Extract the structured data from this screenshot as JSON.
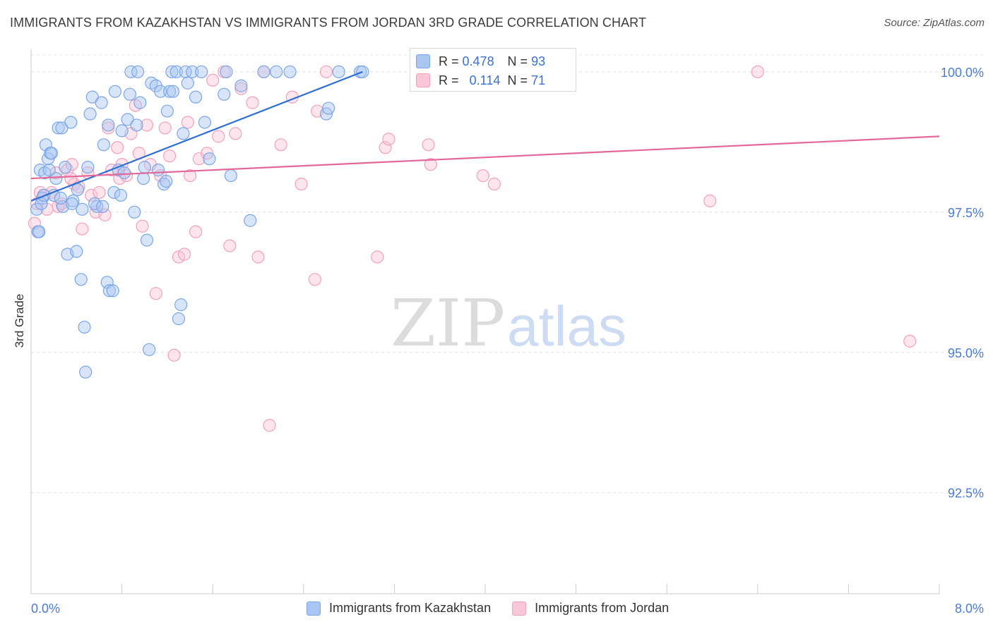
{
  "title": "IMMIGRANTS FROM KAZAKHSTAN VS IMMIGRANTS FROM JORDAN 3RD GRADE CORRELATION CHART",
  "source": "Source: ZipAtlas.com",
  "watermark": {
    "zip": "ZIP",
    "atlas": "atlas"
  },
  "stats": [
    {
      "r_label": "R =",
      "r": "0.478",
      "n_label": "N =",
      "n": "93"
    },
    {
      "r_label": "R =",
      "r": "0.114",
      "n_label": "N =",
      "n": "71"
    }
  ],
  "chart_data": {
    "type": "scatter",
    "title": "IMMIGRANTS FROM KAZAKHSTAN VS IMMIGRANTS FROM JORDAN 3RD GRADE CORRELATION CHART",
    "xlabel": "",
    "ylabel": "3rd Grade",
    "xlim": [
      0,
      8
    ],
    "ylim": [
      90.7,
      100.4
    ],
    "x_tick_labels": [
      "0.0%",
      "8.0%"
    ],
    "y_ticks": [
      92.5,
      95.0,
      97.5,
      100.0
    ],
    "y_tick_labels": [
      "92.5%",
      "95.0%",
      "97.5%",
      "100.0%"
    ],
    "grid": true,
    "series": [
      {
        "name": "Immigrants from Kazakhstan",
        "color": "#7aa6e6",
        "fill": "#a9c6f2",
        "line_color": "#2e6fd6",
        "trend": {
          "x": [
            0.0,
            2.92
          ],
          "y": [
            97.7,
            100.0
          ]
        },
        "points": [
          [
            0.05,
            97.55
          ],
          [
            0.06,
            97.15
          ],
          [
            0.07,
            97.15
          ],
          [
            0.08,
            98.25
          ],
          [
            0.1,
            97.75
          ],
          [
            0.12,
            98.2
          ],
          [
            0.13,
            98.7
          ],
          [
            0.15,
            98.45
          ],
          [
            0.17,
            98.55
          ],
          [
            0.2,
            97.8
          ],
          [
            0.22,
            98.1
          ],
          [
            0.24,
            99.0
          ],
          [
            0.27,
            99.0
          ],
          [
            0.28,
            97.6
          ],
          [
            0.3,
            98.3
          ],
          [
            0.32,
            96.75
          ],
          [
            0.35,
            99.1
          ],
          [
            0.37,
            97.7
          ],
          [
            0.4,
            96.8
          ],
          [
            0.41,
            97.9
          ],
          [
            0.44,
            96.3
          ],
          [
            0.47,
            95.45
          ],
          [
            0.48,
            94.65
          ],
          [
            0.5,
            98.3
          ],
          [
            0.52,
            99.25
          ],
          [
            0.54,
            99.55
          ],
          [
            0.58,
            97.6
          ],
          [
            0.62,
            99.45
          ],
          [
            0.64,
            98.7
          ],
          [
            0.67,
            96.25
          ],
          [
            0.68,
            99.05
          ],
          [
            0.69,
            96.1
          ],
          [
            0.72,
            96.1
          ],
          [
            0.73,
            97.85
          ],
          [
            0.74,
            99.65
          ],
          [
            0.77,
            98.25
          ],
          [
            0.79,
            97.8
          ],
          [
            0.8,
            98.95
          ],
          [
            0.82,
            98.2
          ],
          [
            0.85,
            99.15
          ],
          [
            0.87,
            99.6
          ],
          [
            0.88,
            100.0
          ],
          [
            0.91,
            97.5
          ],
          [
            0.93,
            99.05
          ],
          [
            0.94,
            100.0
          ],
          [
            0.96,
            99.45
          ],
          [
            0.99,
            98.1
          ],
          [
            1.0,
            98.3
          ],
          [
            1.02,
            97.0
          ],
          [
            1.04,
            95.05
          ],
          [
            1.06,
            99.8
          ],
          [
            1.1,
            99.75
          ],
          [
            1.12,
            98.25
          ],
          [
            1.14,
            99.65
          ],
          [
            1.17,
            98.0
          ],
          [
            1.19,
            98.05
          ],
          [
            1.2,
            99.3
          ],
          [
            1.22,
            99.65
          ],
          [
            1.24,
            100.0
          ],
          [
            1.25,
            99.65
          ],
          [
            1.28,
            100.0
          ],
          [
            1.3,
            95.6
          ],
          [
            1.32,
            95.85
          ],
          [
            1.34,
            98.9
          ],
          [
            1.36,
            100.0
          ],
          [
            1.38,
            99.8
          ],
          [
            1.42,
            100.0
          ],
          [
            1.45,
            99.55
          ],
          [
            1.5,
            100.0
          ],
          [
            1.53,
            99.1
          ],
          [
            1.57,
            98.45
          ],
          [
            1.7,
            99.6
          ],
          [
            1.72,
            100.0
          ],
          [
            1.76,
            98.15
          ],
          [
            1.85,
            99.75
          ],
          [
            1.93,
            97.35
          ],
          [
            2.05,
            100.0
          ],
          [
            2.16,
            100.0
          ],
          [
            2.28,
            100.0
          ],
          [
            2.6,
            99.25
          ],
          [
            2.62,
            99.35
          ],
          [
            2.71,
            100.0
          ],
          [
            2.9,
            100.0
          ],
          [
            2.92,
            100.0
          ],
          [
            0.09,
            97.65
          ],
          [
            0.16,
            98.25
          ],
          [
            0.26,
            97.75
          ],
          [
            0.45,
            97.55
          ],
          [
            0.56,
            97.65
          ],
          [
            0.63,
            97.6
          ],
          [
            0.18,
            98.55
          ],
          [
            0.36,
            97.65
          ],
          [
            0.11,
            97.8
          ]
        ]
      },
      {
        "name": "Immigrants from Jordan",
        "color": "#f2a1bc",
        "fill": "#f8c6d6",
        "line_color": "#e2689a",
        "trend": {
          "x": [
            0.0,
            8.0
          ],
          "y": [
            98.1,
            98.85
          ]
        },
        "points": [
          [
            0.03,
            97.3
          ],
          [
            0.05,
            97.65
          ],
          [
            0.08,
            97.85
          ],
          [
            0.12,
            97.8
          ],
          [
            0.18,
            97.85
          ],
          [
            0.22,
            98.2
          ],
          [
            0.24,
            97.6
          ],
          [
            0.27,
            97.65
          ],
          [
            0.32,
            98.25
          ],
          [
            0.36,
            98.35
          ],
          [
            0.38,
            98.0
          ],
          [
            0.42,
            97.95
          ],
          [
            0.45,
            97.2
          ],
          [
            0.5,
            98.2
          ],
          [
            0.53,
            97.8
          ],
          [
            0.57,
            97.5
          ],
          [
            0.6,
            97.85
          ],
          [
            0.65,
            97.45
          ],
          [
            0.68,
            99.0
          ],
          [
            0.71,
            98.25
          ],
          [
            0.76,
            98.65
          ],
          [
            0.78,
            98.1
          ],
          [
            0.8,
            98.35
          ],
          [
            0.84,
            98.15
          ],
          [
            0.88,
            98.9
          ],
          [
            0.92,
            99.4
          ],
          [
            0.95,
            98.55
          ],
          [
            0.98,
            97.25
          ],
          [
            1.02,
            99.05
          ],
          [
            1.05,
            98.35
          ],
          [
            1.1,
            96.05
          ],
          [
            1.14,
            98.15
          ],
          [
            1.18,
            99.0
          ],
          [
            1.22,
            98.5
          ],
          [
            1.26,
            94.95
          ],
          [
            1.3,
            96.7
          ],
          [
            1.35,
            96.75
          ],
          [
            1.38,
            99.1
          ],
          [
            1.4,
            98.15
          ],
          [
            1.45,
            97.15
          ],
          [
            1.48,
            98.45
          ],
          [
            1.55,
            98.55
          ],
          [
            1.6,
            99.85
          ],
          [
            1.65,
            98.85
          ],
          [
            1.75,
            96.9
          ],
          [
            1.8,
            98.9
          ],
          [
            1.85,
            99.7
          ],
          [
            1.95,
            99.45
          ],
          [
            2.0,
            96.7
          ],
          [
            2.05,
            100.0
          ],
          [
            2.1,
            93.7
          ],
          [
            2.2,
            98.7
          ],
          [
            2.3,
            99.55
          ],
          [
            2.38,
            98.0
          ],
          [
            2.5,
            96.3
          ],
          [
            2.52,
            99.3
          ],
          [
            3.05,
            96.7
          ],
          [
            3.12,
            98.65
          ],
          [
            3.15,
            98.8
          ],
          [
            3.5,
            98.7
          ],
          [
            3.52,
            98.35
          ],
          [
            3.98,
            98.15
          ],
          [
            4.08,
            98.0
          ],
          [
            4.32,
            100.0
          ],
          [
            5.98,
            97.7
          ],
          [
            6.4,
            100.0
          ],
          [
            7.74,
            95.2
          ],
          [
            0.14,
            97.55
          ],
          [
            0.35,
            98.1
          ],
          [
            1.7,
            100.0
          ],
          [
            2.6,
            100.0
          ]
        ]
      }
    ]
  },
  "legend": [
    "Immigrants from Kazakhstan",
    "Immigrants from Jordan"
  ]
}
